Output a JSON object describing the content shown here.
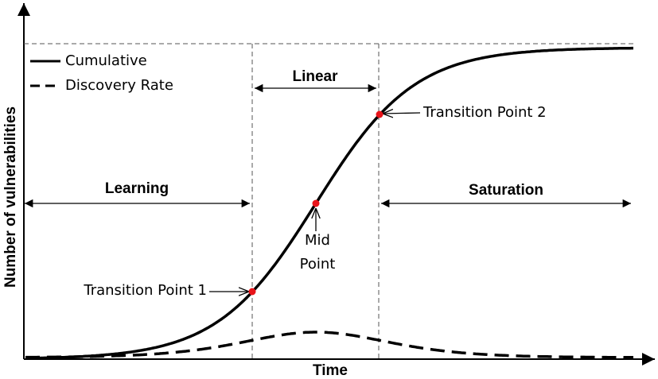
{
  "legend": {
    "items": [
      "Cumulative",
      "Discovery Rate"
    ]
  },
  "phases": {
    "learning": "Learning",
    "linear": "Linear",
    "saturation": "Saturation"
  },
  "points": {
    "transition_1": "Transition Point 1",
    "mid": [
      "Mid",
      "Point"
    ],
    "transition_2": "Transition Point 2"
  },
  "axes": {
    "x_label": "Time",
    "y_label": "Number of vulnerabilities"
  }
}
